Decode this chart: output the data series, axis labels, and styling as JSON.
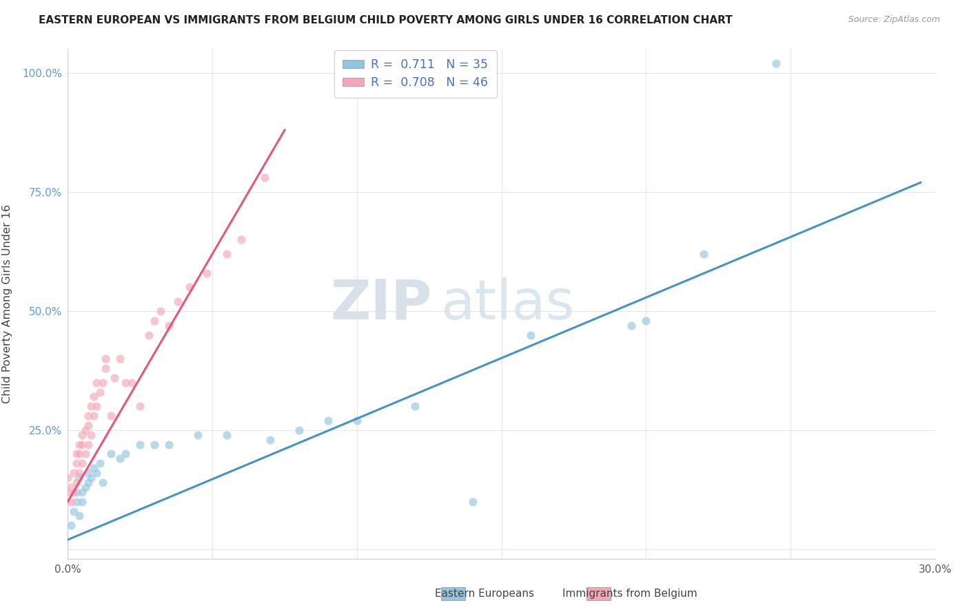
{
  "title": "EASTERN EUROPEAN VS IMMIGRANTS FROM BELGIUM CHILD POVERTY AMONG GIRLS UNDER 16 CORRELATION CHART",
  "source": "Source: ZipAtlas.com",
  "ylabel": "Child Poverty Among Girls Under 16",
  "xlim": [
    0.0,
    0.3
  ],
  "ylim": [
    -0.02,
    1.05
  ],
  "xticks": [
    0.0,
    0.05,
    0.1,
    0.15,
    0.2,
    0.25,
    0.3
  ],
  "yticks": [
    0.0,
    0.25,
    0.5,
    0.75,
    1.0
  ],
  "r_blue": 0.711,
  "n_blue": 35,
  "r_pink": 0.708,
  "n_pink": 46,
  "blue_color": "#92c5de",
  "pink_color": "#f4a6b8",
  "blue_line_color": "#4393c3",
  "pink_line_color": "#e8557a",
  "legend_label_blue": "Eastern Europeans",
  "legend_label_pink": "Immigrants from Belgium",
  "watermark_zip": "ZIP",
  "watermark_atlas": "atlas",
  "background_color": "#ffffff",
  "grid_color": "#e0e0e0",
  "blue_scatter_x": [
    0.001,
    0.002,
    0.003,
    0.003,
    0.004,
    0.004,
    0.005,
    0.005,
    0.006,
    0.007,
    0.007,
    0.008,
    0.009,
    0.01,
    0.011,
    0.012,
    0.015,
    0.018,
    0.02,
    0.025,
    0.03,
    0.035,
    0.045,
    0.055,
    0.07,
    0.08,
    0.09,
    0.1,
    0.12,
    0.14,
    0.16,
    0.195,
    0.2,
    0.22,
    0.245
  ],
  "blue_scatter_y": [
    0.05,
    0.08,
    0.1,
    0.12,
    0.07,
    0.15,
    0.12,
    0.1,
    0.13,
    0.14,
    0.16,
    0.15,
    0.17,
    0.16,
    0.18,
    0.14,
    0.2,
    0.19,
    0.2,
    0.22,
    0.22,
    0.22,
    0.24,
    0.24,
    0.23,
    0.25,
    0.27,
    0.27,
    0.3,
    0.1,
    0.45,
    0.47,
    0.48,
    0.62,
    1.02
  ],
  "pink_scatter_x": [
    0.0,
    0.0,
    0.001,
    0.001,
    0.002,
    0.002,
    0.003,
    0.003,
    0.003,
    0.004,
    0.004,
    0.004,
    0.005,
    0.005,
    0.005,
    0.006,
    0.006,
    0.007,
    0.007,
    0.007,
    0.008,
    0.008,
    0.009,
    0.009,
    0.01,
    0.01,
    0.011,
    0.012,
    0.013,
    0.013,
    0.015,
    0.016,
    0.018,
    0.02,
    0.022,
    0.025,
    0.028,
    0.03,
    0.032,
    0.035,
    0.038,
    0.042,
    0.048,
    0.055,
    0.06,
    0.068
  ],
  "pink_scatter_y": [
    0.12,
    0.15,
    0.1,
    0.13,
    0.12,
    0.16,
    0.14,
    0.18,
    0.2,
    0.16,
    0.2,
    0.22,
    0.18,
    0.22,
    0.24,
    0.2,
    0.25,
    0.22,
    0.26,
    0.28,
    0.24,
    0.3,
    0.28,
    0.32,
    0.3,
    0.35,
    0.33,
    0.35,
    0.38,
    0.4,
    0.28,
    0.36,
    0.4,
    0.35,
    0.35,
    0.3,
    0.45,
    0.48,
    0.5,
    0.47,
    0.52,
    0.55,
    0.58,
    0.62,
    0.65,
    0.78
  ],
  "blue_line_x": [
    0.0,
    0.295
  ],
  "blue_line_y": [
    0.02,
    0.77
  ],
  "pink_line_x": [
    0.0,
    0.075
  ],
  "pink_line_y": [
    0.1,
    0.88
  ]
}
